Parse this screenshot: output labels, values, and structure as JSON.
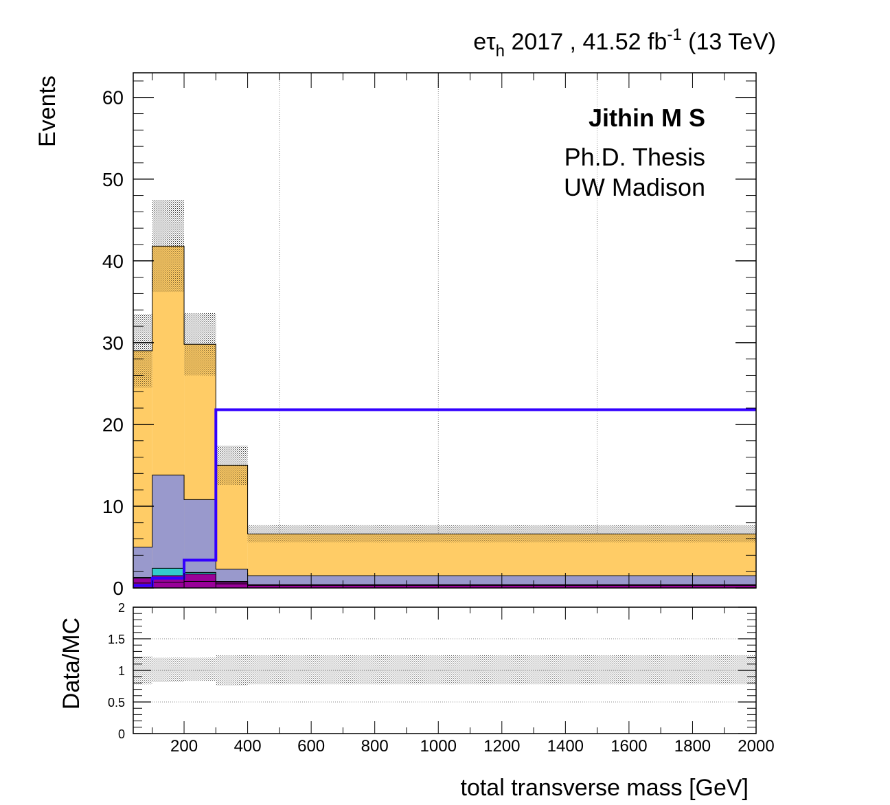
{
  "header": {
    "channel_main": "e",
    "channel_tau": "τ",
    "channel_sub": "h",
    "lumi_text": " 2017 , 41.52 fb",
    "lumi_exp": "-1",
    "energy_text": " (13 TeV)"
  },
  "annotation": {
    "author": "Jithin M S",
    "line1": "Ph.D. Thesis",
    "line2": "UW Madison"
  },
  "colors": {
    "orange": "#ffcc66",
    "lavender": "#9999cc",
    "cyan": "#33cccc",
    "purple": "#990099",
    "signal": "#3300ff",
    "frame": "#000000"
  },
  "chart_data": [
    {
      "type": "stacked-histogram",
      "xlabel": "total transverse mass [GeV]",
      "ylabel": "Events",
      "xlim": [
        40,
        2000
      ],
      "ylim": [
        0,
        63
      ],
      "yticks": [
        0,
        10,
        20,
        30,
        40,
        50,
        60
      ],
      "vertical_grid_at": [
        500,
        1000,
        1500
      ],
      "bin_edges": [
        40,
        100,
        200,
        300,
        400,
        2000
      ],
      "series": [
        {
          "values": [
            0.6,
            0.7,
            0.8,
            0.5,
            0.3
          ],
          "color": "#990099"
        },
        {
          "values": [
            0.6,
            0.8,
            0.9,
            0.2,
            0.1
          ],
          "color": "#990099"
        },
        {
          "values": [
            0.1,
            0.9,
            0.2,
            0.1,
            0.0
          ],
          "color": "#33cccc"
        },
        {
          "values": [
            3.7,
            11.4,
            8.9,
            1.5,
            1.1
          ],
          "color": "#9999cc"
        },
        {
          "values": [
            24.0,
            28.0,
            19.0,
            12.7,
            5.1
          ],
          "color": "#ffcc66"
        }
      ],
      "total": [
        29.0,
        41.8,
        29.8,
        15.0,
        6.6
      ],
      "uncertainty_band": {
        "low": [
          24.5,
          36.2,
          26.0,
          12.6,
          5.6
        ],
        "high": [
          33.5,
          47.5,
          33.6,
          17.4,
          7.7
        ]
      },
      "signal": {
        "values": [
          0.3,
          1.2,
          3.4,
          21.8,
          21.8
        ],
        "color": "#3300ff"
      }
    },
    {
      "type": "ratio",
      "ylabel": "Data/MC",
      "xlabel": "total transverse mass [GeV]",
      "xlim": [
        40,
        2000
      ],
      "ylim": [
        0,
        2
      ],
      "yticks": [
        0,
        0.5,
        1,
        1.5,
        2
      ],
      "ytick_labels": [
        "0",
        "0.5",
        "1",
        "1.5",
        "2"
      ],
      "xticks": [
        200,
        400,
        600,
        800,
        1000,
        1200,
        1400,
        1600,
        1800,
        2000
      ],
      "horizontal_grid_at": [
        0.5,
        1,
        1.5
      ],
      "bin_edges": [
        40,
        100,
        200,
        300,
        400,
        2000
      ],
      "band_low": [
        0.78,
        0.82,
        0.83,
        0.76,
        0.78
      ],
      "band_high": [
        1.22,
        1.2,
        1.2,
        1.24,
        1.24
      ]
    }
  ]
}
